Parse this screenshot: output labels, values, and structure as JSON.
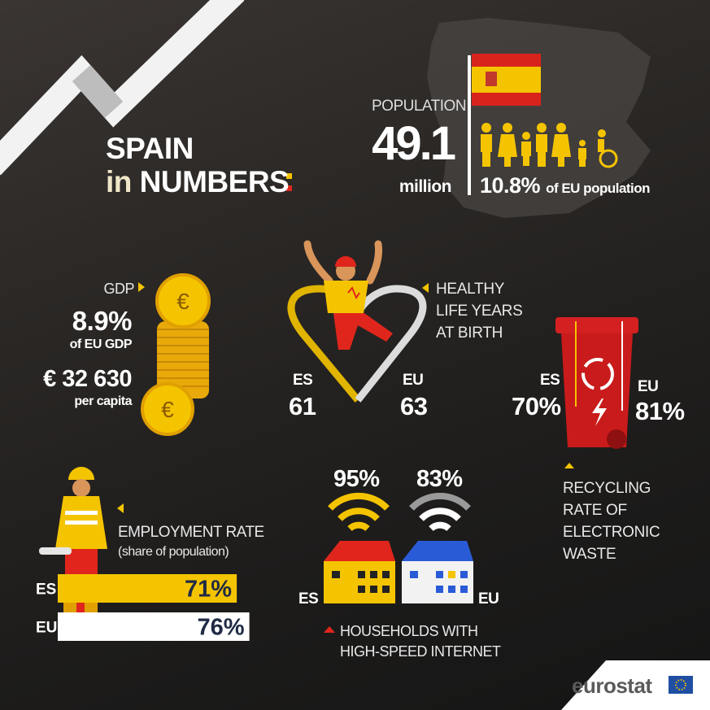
{
  "title": {
    "line1": "SPAIN",
    "line2_prefix": "in",
    "line2": "NUMBERS"
  },
  "population": {
    "label": "POPULATION",
    "value": "49.1",
    "unit": "million",
    "eu_share": "10.8%",
    "eu_share_text": "of EU population"
  },
  "gdp": {
    "label": "GDP",
    "share": "8.9%",
    "share_text": "of EU GDP",
    "per_capita": "€ 32 630",
    "per_capita_text": "per capita"
  },
  "healthy_life": {
    "label_lines": [
      "HEALTHY",
      "LIFE YEARS",
      "AT BIRTH"
    ],
    "es_label": "ES",
    "es_value": "61",
    "eu_label": "EU",
    "eu_value": "63"
  },
  "recycling": {
    "es_label": "ES",
    "es_value": "70%",
    "eu_label": "EU",
    "eu_value": "81%",
    "label_lines": [
      "RECYCLING",
      "RATE OF",
      "ELECTRONIC",
      "WASTE"
    ]
  },
  "employment": {
    "label": "EMPLOYMENT RATE",
    "sublabel": "(share of population)",
    "bars": [
      {
        "name": "ES",
        "value": 71,
        "label": "71%",
        "color": "#f5c400"
      },
      {
        "name": "EU",
        "value": 76,
        "label": "76%",
        "color": "#ffffff"
      }
    ]
  },
  "internet": {
    "es_value": "95%",
    "eu_value": "83%",
    "es_label": "ES",
    "eu_label": "EU",
    "label_lines": [
      "HOUSEHOLDS WITH",
      "HIGH-SPEED INTERNET"
    ]
  },
  "footer": {
    "brand": "eurostat"
  }
}
